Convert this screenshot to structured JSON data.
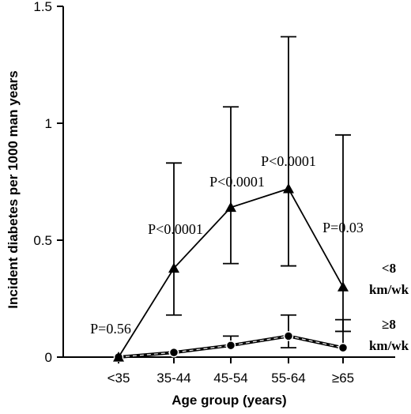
{
  "chart_data": {
    "type": "line",
    "xlabel": "Age group (years)",
    "ylabel": "Incident diabetes per 1000 man years",
    "categories": [
      "<35",
      "35-44",
      "45-54",
      "55-64",
      "≥65"
    ],
    "ylim": [
      0,
      1.5
    ],
    "yticks": [
      {
        "value": 0,
        "label": "0"
      },
      {
        "value": 0.5,
        "label": "0.5"
      },
      {
        "value": 1,
        "label": "1"
      },
      {
        "value": 1.5,
        "label": "1.5"
      }
    ],
    "grid": false,
    "series": [
      {
        "name": "<8 km/wk",
        "label_lines": [
          "<8",
          "km/wk"
        ],
        "marker": "triangle",
        "line_style": "solid",
        "values": [
          0.0,
          0.38,
          0.64,
          0.72,
          0.3
        ],
        "error_upper": [
          null,
          0.83,
          1.07,
          1.37,
          0.95
        ],
        "error_lower": [
          null,
          0.18,
          0.4,
          0.39,
          0.11
        ]
      },
      {
        "name": "≥8 km/wk",
        "label_lines": [
          "≥8",
          "km/wk"
        ],
        "marker": "circle",
        "line_style": "dashed",
        "values": [
          0.0,
          0.02,
          0.05,
          0.09,
          0.04
        ],
        "error_upper": [
          null,
          null,
          0.09,
          0.18,
          0.16
        ],
        "error_lower": [
          null,
          null,
          null,
          0.04,
          null
        ]
      }
    ],
    "annotations": [
      "P=0.56",
      "P<0.0001",
      "P<0.0001",
      "P<0.0001",
      "P=0.03"
    ]
  }
}
